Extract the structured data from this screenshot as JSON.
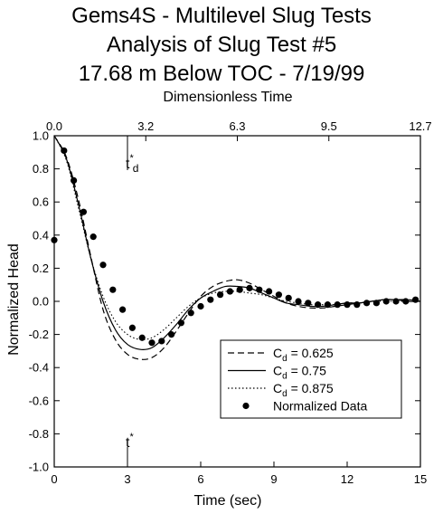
{
  "title_lines": [
    "Gems4S - Multilevel Slug Tests",
    "Analysis of Slug Test #5",
    "17.68 m Below TOC - 7/19/99"
  ],
  "chart_data": {
    "type": "line",
    "title": "Gems4S - Multilevel Slug Tests / Analysis of Slug Test #5 / 17.68 m Below TOC - 7/19/99",
    "xlabel": "Time (sec)",
    "x2label": "Dimensionless Time",
    "ylabel": "Normalized Head",
    "xlim": [
      0,
      15
    ],
    "ylim": [
      -1.0,
      1.0
    ],
    "grid": false,
    "x_ticks": [
      "0",
      "3",
      "6",
      "9",
      "12",
      "15"
    ],
    "x_tick_values": [
      0,
      3,
      6,
      9,
      12,
      15
    ],
    "x2_ticks": [
      "0.0",
      "3.2",
      "6.3",
      "9.5",
      "12.7"
    ],
    "x2_tick_values": [
      0,
      3.75,
      7.5,
      11.25,
      15
    ],
    "y_ticks": [
      "1.0",
      "0.8",
      "0.6",
      "0.4",
      "0.2",
      "0.0",
      "-0.2",
      "-0.4",
      "-0.6",
      "-0.8",
      "-1.0"
    ],
    "y_tick_values": [
      1.0,
      0.8,
      0.6,
      0.4,
      0.2,
      0.0,
      -0.2,
      -0.4,
      -0.6,
      -0.8,
      -1.0
    ],
    "marker_lines": [
      {
        "x": 3.0,
        "label": "t",
        "sub": "d",
        "sup": "*",
        "position": "top"
      },
      {
        "x": 3.0,
        "label": "t",
        "sub": "",
        "sup": "*",
        "position": "bottom"
      }
    ],
    "legend_position": "bottom-right",
    "series": [
      {
        "name": "C<sub>d</sub> = 0.625",
        "legend_main": "C",
        "legend_sub": "d",
        "legend_rest": " = 0.625",
        "style": "dashed",
        "x": [
          0,
          0.5,
          1,
          1.5,
          2,
          2.5,
          3,
          3.5,
          4,
          4.5,
          5,
          5.5,
          6,
          6.5,
          7,
          7.5,
          8,
          8.5,
          9,
          9.5,
          10,
          10.5,
          11,
          11.5,
          12,
          12.5,
          13,
          13.5,
          14,
          14.5,
          15
        ],
        "y": [
          1.0,
          0.87,
          0.61,
          0.27,
          -0.05,
          -0.23,
          -0.32,
          -0.35,
          -0.34,
          -0.28,
          -0.18,
          -0.07,
          0.03,
          0.09,
          0.12,
          0.13,
          0.11,
          0.07,
          0.03,
          -0.01,
          -0.03,
          -0.04,
          -0.04,
          -0.03,
          -0.02,
          -0.01,
          0.0,
          0.01,
          0.01,
          0.01,
          0.0
        ]
      },
      {
        "name": "C<sub>d</sub> = 0.75",
        "legend_main": "C",
        "legend_sub": "d",
        "legend_rest": " = 0.75",
        "style": "solid",
        "x": [
          0,
          0.5,
          1,
          1.5,
          2,
          2.5,
          3,
          3.5,
          4,
          4.5,
          5,
          5.5,
          6,
          6.5,
          7,
          7.5,
          8,
          8.5,
          9,
          9.5,
          10,
          10.5,
          11,
          11.5,
          12,
          12.5,
          13,
          13.5,
          14,
          14.5,
          15
        ],
        "y": [
          1.0,
          0.86,
          0.58,
          0.26,
          0.0,
          -0.17,
          -0.26,
          -0.29,
          -0.28,
          -0.22,
          -0.14,
          -0.05,
          0.02,
          0.06,
          0.09,
          0.09,
          0.08,
          0.05,
          0.02,
          -0.01,
          -0.02,
          -0.03,
          -0.03,
          -0.02,
          -0.01,
          -0.01,
          0.0,
          0.01,
          0.01,
          0.0,
          0.0
        ]
      },
      {
        "name": "C<sub>d</sub> = 0.875",
        "legend_main": "C",
        "legend_sub": "d",
        "legend_rest": " = 0.875",
        "style": "dotted",
        "x": [
          0,
          0.5,
          1,
          1.5,
          2,
          2.5,
          3,
          3.5,
          4,
          4.5,
          5,
          5.5,
          6,
          6.5,
          7,
          7.5,
          8,
          8.5,
          9,
          9.5,
          10,
          10.5,
          11,
          11.5,
          12,
          12.5,
          13,
          13.5,
          14,
          14.5,
          15
        ],
        "y": [
          1.0,
          0.85,
          0.56,
          0.26,
          0.03,
          -0.12,
          -0.2,
          -0.23,
          -0.22,
          -0.17,
          -0.1,
          -0.03,
          0.02,
          0.05,
          0.06,
          0.06,
          0.05,
          0.04,
          0.02,
          0.0,
          -0.01,
          -0.02,
          -0.02,
          -0.02,
          -0.01,
          -0.01,
          0.0,
          0.0,
          0.0,
          0.0,
          0.0
        ]
      },
      {
        "name": "Normalized Data",
        "legend_main": "Normalized Data",
        "legend_sub": "",
        "legend_rest": "",
        "style": "markers",
        "x": [
          0.0,
          0.4,
          0.8,
          1.2,
          1.6,
          2.0,
          2.4,
          2.8,
          3.2,
          3.6,
          4.0,
          4.4,
          4.8,
          5.2,
          5.6,
          6.0,
          6.4,
          6.8,
          7.2,
          7.6,
          8.0,
          8.4,
          8.8,
          9.2,
          9.6,
          10.0,
          10.4,
          10.8,
          11.2,
          11.6,
          12.0,
          12.4,
          12.8,
          13.2,
          13.6,
          14.0,
          14.4,
          14.8
        ],
        "y": [
          0.37,
          0.91,
          0.73,
          0.54,
          0.39,
          0.22,
          0.07,
          -0.05,
          -0.16,
          -0.22,
          -0.25,
          -0.24,
          -0.2,
          -0.13,
          -0.07,
          -0.03,
          0.01,
          0.04,
          0.06,
          0.07,
          0.08,
          0.07,
          0.06,
          0.04,
          0.02,
          0.0,
          -0.01,
          -0.02,
          -0.02,
          -0.02,
          -0.02,
          -0.02,
          -0.01,
          -0.01,
          0.0,
          0.0,
          0.0,
          0.01
        ]
      }
    ]
  }
}
